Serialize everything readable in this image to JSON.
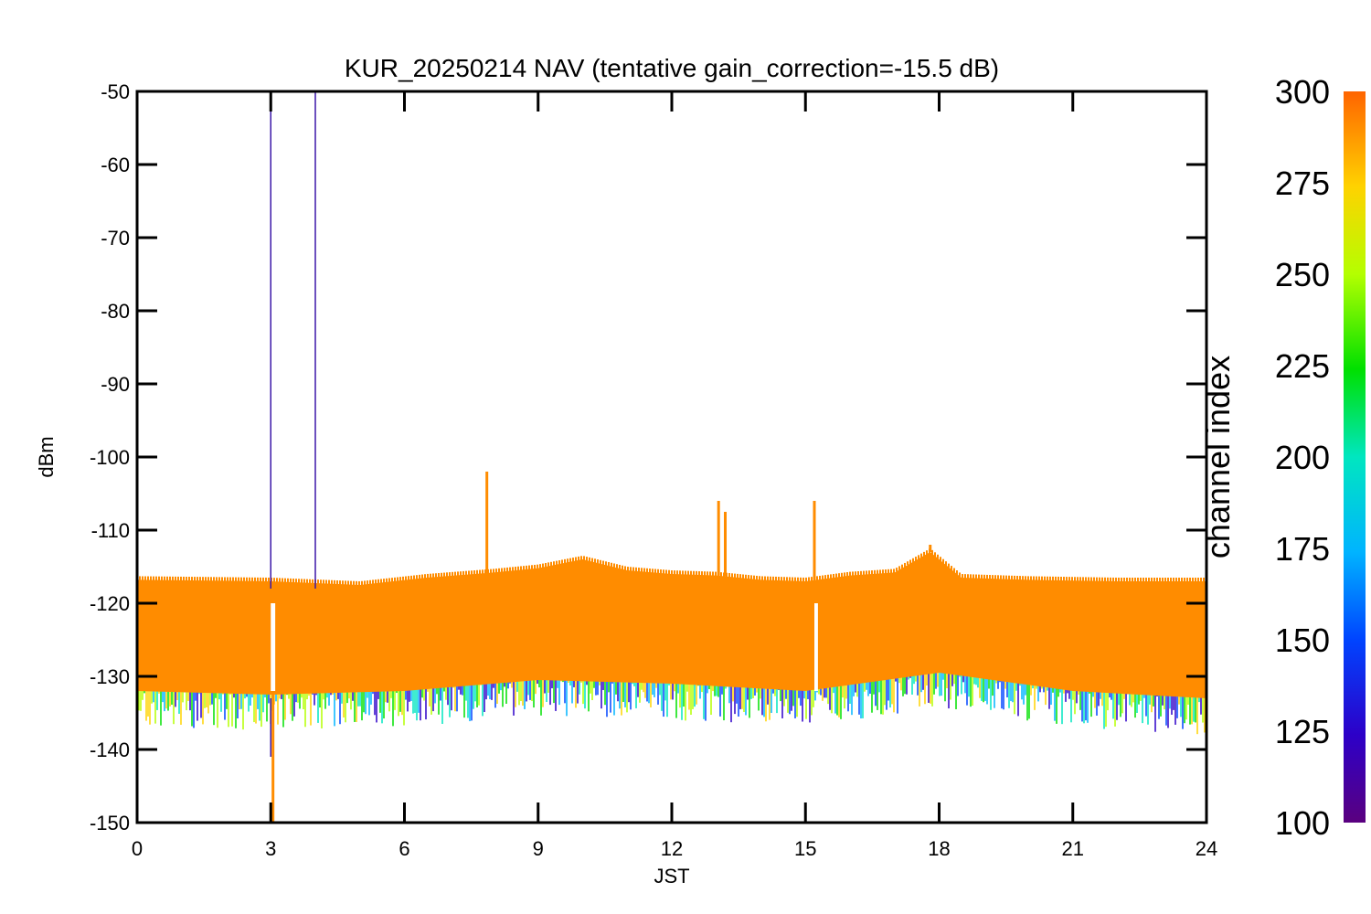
{
  "chart_data": {
    "type": "line",
    "title": "KUR_20250214 NAV (tentative gain_correction=-15.5 dB)",
    "xlabel": "JST",
    "ylabel": "dBm",
    "xlim": [
      0,
      24
    ],
    "ylim": [
      -150,
      -50
    ],
    "x_ticks": [
      "0",
      "3",
      "6",
      "9",
      "12",
      "15",
      "18",
      "21",
      "24"
    ],
    "y_ticks": [
      "-50",
      "-60",
      "-70",
      "-80",
      "-90",
      "-100",
      "-110",
      "-120",
      "-130",
      "-140",
      "-150"
    ],
    "grid": false,
    "colorbar": {
      "label": "channel index",
      "range": [
        100,
        300
      ],
      "ticks": [
        "300",
        "275",
        "250",
        "225",
        "200",
        "175",
        "150",
        "125",
        "100"
      ]
    },
    "series": [
      {
        "color": "#ff8c00",
        "values_desc": "band",
        "upper_envelope": [
          [
            0,
            -116.8
          ],
          [
            3,
            -117
          ],
          [
            5,
            -117.5
          ],
          [
            6.5,
            -116.5
          ],
          [
            8,
            -115.8
          ],
          [
            9,
            -115.2
          ],
          [
            10,
            -114
          ],
          [
            11,
            -115.5
          ],
          [
            12,
            -116
          ],
          [
            13,
            -116.2
          ],
          [
            14,
            -116.8
          ],
          [
            15,
            -117
          ],
          [
            16,
            -116.2
          ],
          [
            17,
            -115.8
          ],
          [
            17.8,
            -113
          ],
          [
            18.5,
            -116.5
          ],
          [
            20,
            -116.8
          ],
          [
            22,
            -117
          ],
          [
            24,
            -117
          ]
        ],
        "lower_envelope": [
          [
            0,
            -132
          ],
          [
            3,
            -132.5
          ],
          [
            6,
            -132
          ],
          [
            9,
            -130.5
          ],
          [
            12,
            -131
          ],
          [
            15,
            -132
          ],
          [
            18,
            -129.5
          ],
          [
            21,
            -132
          ],
          [
            24,
            -133
          ]
        ],
        "spikes": [
          [
            7.85,
            -102
          ],
          [
            13.05,
            -106
          ],
          [
            13.2,
            -107.5
          ],
          [
            15.2,
            -106
          ],
          [
            17.8,
            -112
          ]
        ]
      },
      {
        "color": "#3b17a8",
        "values_desc": "spikes",
        "spikes": [
          [
            3.0,
            -50
          ],
          [
            4.0,
            -50
          ],
          [
            3.0,
            -141
          ]
        ]
      }
    ]
  }
}
